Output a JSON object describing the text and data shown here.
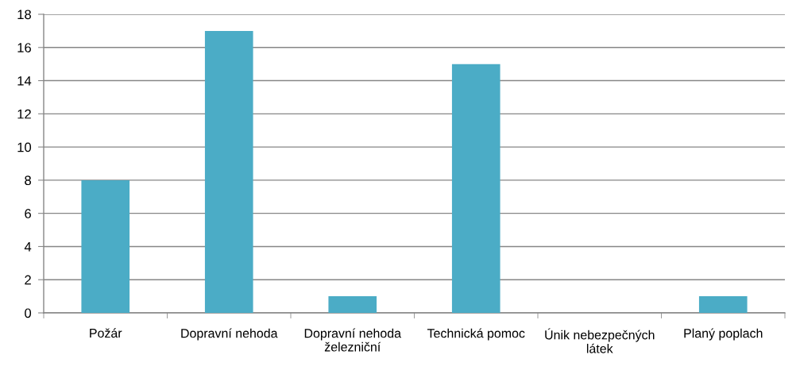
{
  "chart_data": {
    "type": "bar",
    "categories": [
      "Požár",
      "Dopravní nehoda",
      "Dopravní nehoda\nželezniční",
      "Technická pomoc",
      "Únik nebezpečných\nlátek",
      "Planý poplach"
    ],
    "values": [
      8,
      17,
      1,
      15,
      0,
      1
    ],
    "color": "#4bacc6",
    "ylim": [
      0,
      18
    ],
    "yticks": [
      0,
      2,
      4,
      6,
      8,
      10,
      12,
      14,
      16,
      18
    ],
    "grid": "y"
  }
}
